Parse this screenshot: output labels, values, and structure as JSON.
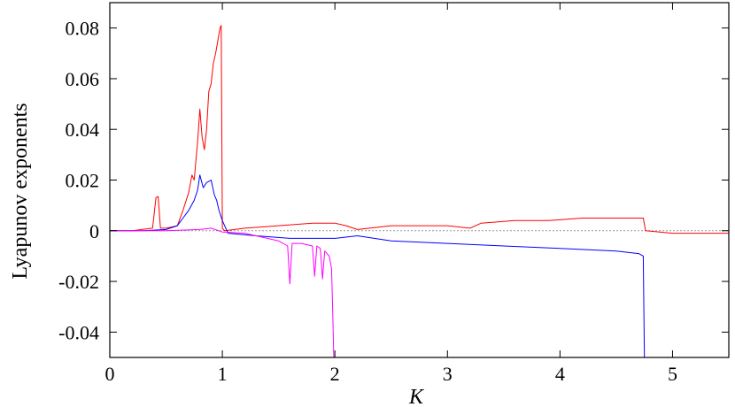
{
  "chart_data": {
    "type": "line",
    "title": "",
    "xlabel": "K",
    "ylabel": "Lyapunov exponents",
    "xlim": [
      0,
      5.5
    ],
    "ylim": [
      -0.05,
      0.09
    ],
    "xticks": [
      0,
      1,
      2,
      3,
      4,
      5
    ],
    "xtick_labels": [
      "0",
      "1",
      "2",
      "3",
      "4",
      "5"
    ],
    "yticks": [
      -0.04,
      -0.02,
      0,
      0.02,
      0.04,
      0.06,
      0.08
    ],
    "ytick_labels": [
      "-0.04",
      "-0.02",
      "0",
      "0.02",
      "0.04",
      "0.06",
      "0.08"
    ],
    "grid": false,
    "legend": "none",
    "zero_line": {
      "y": 0,
      "style": "dotted",
      "color": "#999999"
    },
    "series": [
      {
        "color": "#ff0000",
        "x": [
          0,
          0.2,
          0.38,
          0.41,
          0.43,
          0.45,
          0.5,
          0.6,
          0.65,
          0.7,
          0.73,
          0.75,
          0.78,
          0.8,
          0.82,
          0.84,
          0.86,
          0.88,
          0.9,
          0.92,
          0.94,
          0.96,
          0.98,
          0.99,
          1.0,
          1.02,
          1.2,
          1.5,
          1.8,
          2.0,
          2.1,
          2.2,
          2.5,
          2.8,
          3.0,
          3.2,
          3.3,
          3.6,
          3.9,
          4.2,
          4.5,
          4.7,
          4.74,
          4.76,
          5.0,
          5.5
        ],
        "y": [
          0,
          0,
          0.001,
          0.013,
          0.0135,
          0.001,
          0.001,
          0.002,
          0.008,
          0.015,
          0.022,
          0.02,
          0.035,
          0.048,
          0.037,
          0.032,
          0.04,
          0.055,
          0.058,
          0.066,
          0.07,
          0.075,
          0.08,
          0.081,
          0.001,
          0,
          0.001,
          0.002,
          0.003,
          0.003,
          0.002,
          0.0005,
          0.002,
          0.002,
          0.002,
          0.001,
          0.003,
          0.004,
          0.004,
          0.005,
          0.005,
          0.005,
          0.005,
          0,
          -0.001,
          -0.001
        ]
      },
      {
        "color": "#0000ff",
        "x": [
          0,
          0.3,
          0.5,
          0.6,
          0.65,
          0.7,
          0.75,
          0.78,
          0.8,
          0.83,
          0.86,
          0.9,
          0.93,
          0.95,
          0.97,
          1.0,
          1.05,
          1.3,
          1.6,
          2.0,
          2.2,
          2.5,
          3.0,
          3.5,
          4.0,
          4.5,
          4.7,
          4.74,
          4.75,
          4.76
        ],
        "y": [
          0,
          0,
          0.0005,
          0.002,
          0.005,
          0.008,
          0.012,
          0.016,
          0.022,
          0.017,
          0.019,
          0.02,
          0.014,
          0.012,
          0.008,
          0.004,
          -0.001,
          -0.002,
          -0.003,
          -0.003,
          -0.002,
          -0.004,
          -0.005,
          -0.006,
          -0.007,
          -0.008,
          -0.009,
          -0.01,
          -0.05,
          -0.05
        ]
      },
      {
        "color": "#ff00ff",
        "x": [
          0,
          0.5,
          0.8,
          0.9,
          1.0,
          1.2,
          1.4,
          1.5,
          1.58,
          1.6,
          1.62,
          1.7,
          1.8,
          1.82,
          1.84,
          1.87,
          1.89,
          1.91,
          1.95,
          1.97,
          1.98,
          1.99,
          2.0
        ],
        "y": [
          0,
          0,
          0.0005,
          0.001,
          -0.0005,
          -0.001,
          -0.003,
          -0.004,
          -0.006,
          -0.021,
          -0.005,
          -0.005,
          -0.006,
          -0.018,
          -0.006,
          -0.007,
          -0.019,
          -0.008,
          -0.01,
          -0.015,
          -0.03,
          -0.05,
          -0.05
        ]
      }
    ]
  }
}
